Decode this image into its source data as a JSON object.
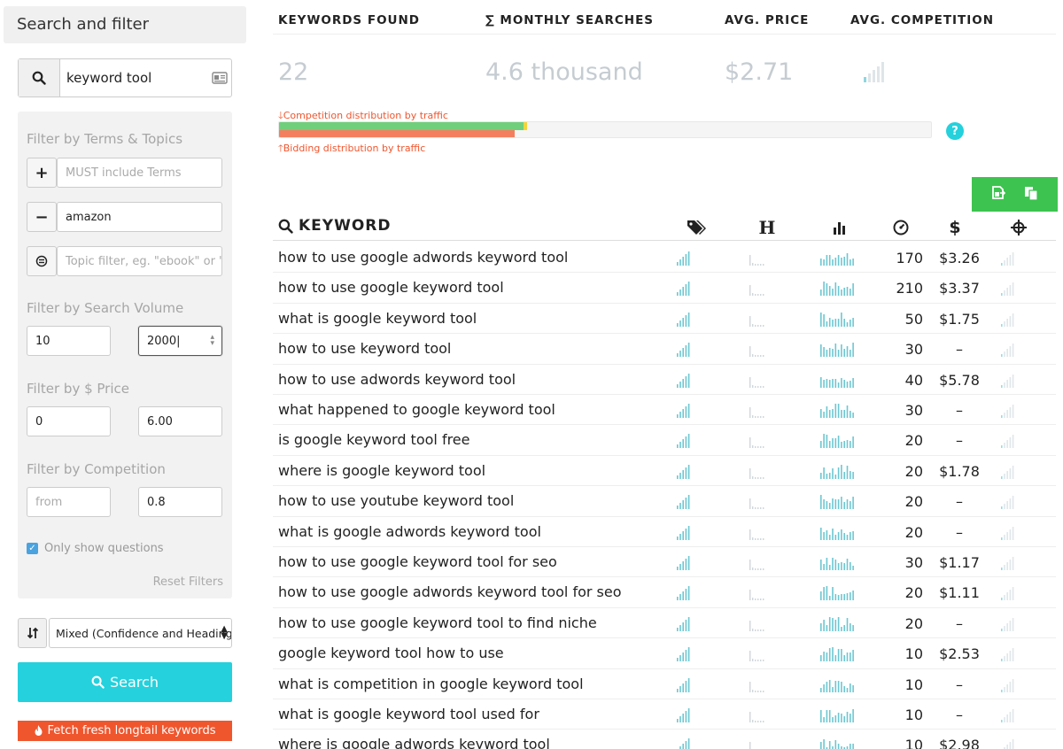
{
  "sidebar": {
    "header": "Search and filter",
    "search_value": "keyword tool",
    "filters": {
      "terms_title": "Filter by Terms & Topics",
      "must_include_placeholder": "MUST include Terms",
      "exclude_value": "amazon",
      "topic_placeholder": "Topic filter, eg. \"ebook\" or \"ar",
      "volume_title": "Filter by Search Volume",
      "volume_min": "10",
      "volume_max": "2000",
      "price_title": "Filter by $ Price",
      "price_min": "0",
      "price_max": "6.00",
      "competition_title": "Filter by Competition",
      "competition_from_placeholder": "from",
      "competition_to": "0.8",
      "only_questions_label": "Only show questions",
      "only_questions_checked": true,
      "reset_label": "Reset Filters"
    },
    "sort_value": "Mixed (Confidence and Headings",
    "search_button": "Search",
    "fetch_button": "Fetch fresh longtail keywords"
  },
  "stats": {
    "headers": [
      "KEYWORDS FOUND",
      "∑ MONTHLY SEARCHES",
      "AVG. PRICE",
      "AVG. COMPETITION"
    ],
    "keywords_found": "22",
    "monthly_searches": "4.6 thousand",
    "avg_price": "$2.71",
    "competition_label": "Competition distribution by traffic",
    "bidding_label": "Bidding distribution by traffic",
    "competition_distribution": {
      "green": 0.375,
      "yellow": 0.005
    },
    "bidding_distribution": {
      "orange": 0.362
    },
    "colors": {
      "green": "#6fcf7a",
      "yellow": "#f2d53c",
      "orange": "#f47f5f",
      "accent": "#24d1dc"
    }
  },
  "table": {
    "keyword_header": "KEYWORD",
    "rows": [
      {
        "keyword": "how to use google adwords keyword tool",
        "volume": "170",
        "price": "$3.26"
      },
      {
        "keyword": "how to use google keyword tool",
        "volume": "210",
        "price": "$3.37"
      },
      {
        "keyword": "what is google keyword tool",
        "volume": "50",
        "price": "$1.75"
      },
      {
        "keyword": "how to use keyword tool",
        "volume": "30",
        "price": "–"
      },
      {
        "keyword": "how to use adwords keyword tool",
        "volume": "40",
        "price": "$5.78"
      },
      {
        "keyword": "what happened to google keyword tool",
        "volume": "30",
        "price": "–"
      },
      {
        "keyword": "is google keyword tool free",
        "volume": "20",
        "price": "–"
      },
      {
        "keyword": "where is google keyword tool",
        "volume": "20",
        "price": "$1.78"
      },
      {
        "keyword": "how to use youtube keyword tool",
        "volume": "20",
        "price": "–"
      },
      {
        "keyword": "what is google adwords keyword tool",
        "volume": "20",
        "price": "–"
      },
      {
        "keyword": "how to use google keyword tool for seo",
        "volume": "30",
        "price": "$1.17"
      },
      {
        "keyword": "how to use google adwords keyword tool for seo",
        "volume": "20",
        "price": "$1.11"
      },
      {
        "keyword": "how to use google keyword tool to find niche",
        "volume": "20",
        "price": "–"
      },
      {
        "keyword": "google keyword tool how to use",
        "volume": "10",
        "price": "$2.53"
      },
      {
        "keyword": "what is competition in google keyword tool",
        "volume": "10",
        "price": "–"
      },
      {
        "keyword": "what is google keyword tool used for",
        "volume": "10",
        "price": "–"
      },
      {
        "keyword": "where is google adwords keyword tool",
        "volume": "10",
        "price": "$2.98"
      }
    ]
  }
}
